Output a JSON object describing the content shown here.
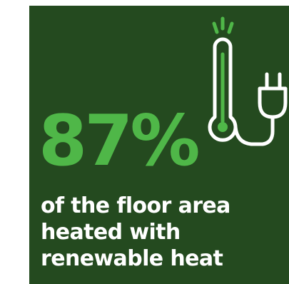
{
  "infographic": {
    "stat_value": "87%",
    "caption_lines": [
      "of the floor area",
      "heated with",
      "renewable heat"
    ],
    "icon": "thermometer-with-plug-icon",
    "colors": {
      "background": "#244a1f",
      "accent_green": "#4fb748",
      "icon_stroke": "#ffffff",
      "text": "#ffffff"
    }
  }
}
